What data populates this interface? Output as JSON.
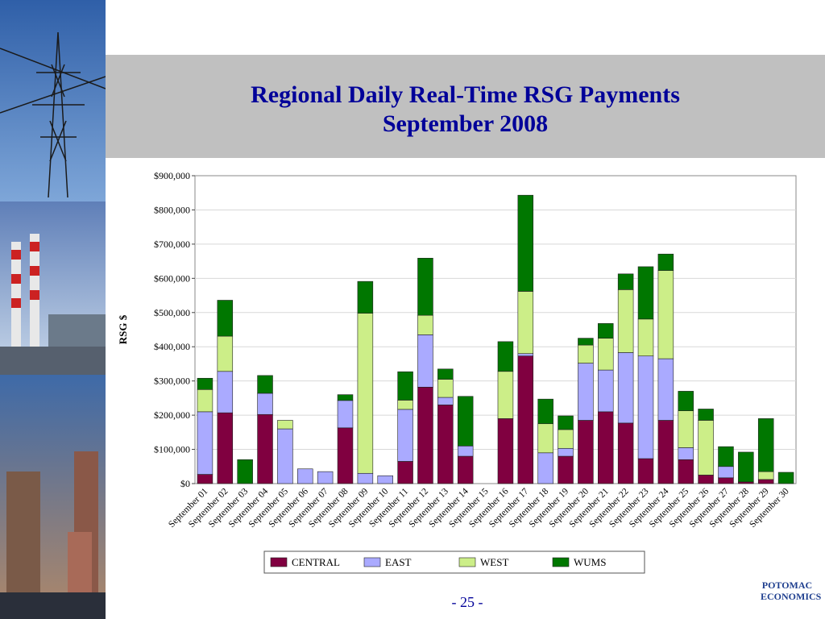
{
  "slide": {
    "title_line1": "Regional Daily Real-Time RSG Payments",
    "title_line2": "September 2008",
    "page_number": "- 25 -",
    "logo_line1": "POTOMAC",
    "logo_line2": "ECONOMICS"
  },
  "colors": {
    "title": "#000099",
    "band": "#c0c0c0",
    "CENTRAL": "#800040",
    "EAST": "#aaaaff",
    "WEST": "#ccee88",
    "WUMS": "#007700"
  },
  "chart_data": {
    "type": "bar",
    "stacked": true,
    "title": "",
    "xlabel": "",
    "ylabel": "RSG $",
    "ylim": [
      0,
      900000
    ],
    "yticks": [
      "$0",
      "$100,000",
      "$200,000",
      "$300,000",
      "$400,000",
      "$500,000",
      "$600,000",
      "$700,000",
      "$800,000",
      "$900,000"
    ],
    "grid": true,
    "legend_position": "bottom",
    "categories": [
      "September 01",
      "September 02",
      "September 03",
      "September 04",
      "September 05",
      "September 06",
      "September 07",
      "September 08",
      "September 09",
      "September 10",
      "September 11",
      "September 12",
      "September 13",
      "September 14",
      "September 15",
      "September 16",
      "September 17",
      "September 18",
      "September 19",
      "September 20",
      "September 21",
      "September 22",
      "September 23",
      "September 24",
      "September 25",
      "September 26",
      "September 27",
      "September 28",
      "September 29",
      "September 30"
    ],
    "series": [
      {
        "name": "CENTRAL",
        "values": [
          27000,
          207000,
          0,
          202000,
          0,
          0,
          0,
          163000,
          0,
          0,
          65000,
          282000,
          230000,
          80000,
          0,
          190000,
          373000,
          0,
          80000,
          185000,
          210000,
          177000,
          73000,
          185000,
          70000,
          25000,
          17000,
          5000,
          12000,
          0
        ]
      },
      {
        "name": "EAST",
        "values": [
          183000,
          121000,
          0,
          62000,
          160000,
          43000,
          35000,
          80000,
          30000,
          23000,
          152000,
          153000,
          22000,
          30000,
          0,
          0,
          7000,
          90000,
          23000,
          167000,
          122000,
          206000,
          300000,
          180000,
          35000,
          0,
          33000,
          0,
          0,
          0
        ]
      },
      {
        "name": "WEST",
        "values": [
          65000,
          103000,
          0,
          0,
          25000,
          0,
          0,
          0,
          468000,
          0,
          27000,
          57000,
          53000,
          0,
          0,
          138000,
          182000,
          85000,
          55000,
          53000,
          93000,
          184000,
          108000,
          258000,
          108000,
          160000,
          0,
          0,
          23000,
          0
        ]
      },
      {
        "name": "WUMS",
        "values": [
          33000,
          105000,
          70000,
          52000,
          0,
          0,
          0,
          17000,
          93000,
          0,
          83000,
          167000,
          30000,
          145000,
          0,
          87000,
          281000,
          72000,
          40000,
          20000,
          43000,
          46000,
          153000,
          48000,
          57000,
          33000,
          58000,
          87000,
          155000,
          33000
        ]
      }
    ]
  }
}
